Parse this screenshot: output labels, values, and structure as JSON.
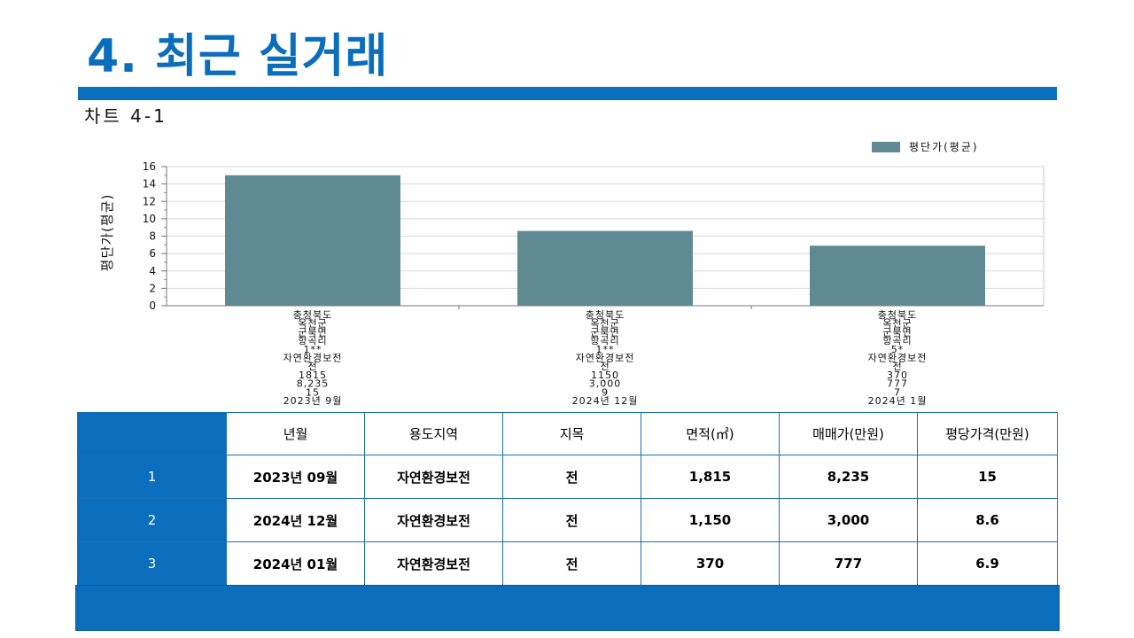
{
  "page": {
    "title": "4. 최근 실거래",
    "chart_label": "차트 4-1"
  },
  "colors": {
    "accent": "#0a6ebd",
    "bar": "#5f8a94"
  },
  "chart_data": {
    "type": "bar",
    "ylabel": "평단가(평균)",
    "ylim": [
      0,
      16
    ],
    "yticks": [
      0,
      2,
      4,
      6,
      8,
      10,
      12,
      14,
      16
    ],
    "legend": "평단가(평균)",
    "legend_position": "top-right",
    "grid": true,
    "categories": [
      [
        "충청북도",
        "옥천군",
        "군북면",
        "항곡리",
        "1**",
        "자연환경보전",
        "전",
        "1815",
        "8,235",
        "15",
        "2023년 9월"
      ],
      [
        "충청북도",
        "옥천군",
        "군북면",
        "항곡리",
        "1**",
        "자연환경보전",
        "전",
        "1150",
        "3,000",
        "9",
        "2024년 12월"
      ],
      [
        "충청북도",
        "옥천군",
        "군북면",
        "항곡리",
        "5*",
        "자연환경보전",
        "전",
        "370",
        "777",
        "7",
        "2024년 1월"
      ]
    ],
    "series": [
      {
        "name": "평단가(평균)",
        "values": [
          15,
          8.6,
          6.9
        ]
      }
    ]
  },
  "table": {
    "headers": [
      "",
      "년월",
      "용도지역",
      "지목",
      "면적(㎡)",
      "매매가(만원)",
      "평당가격(만원)"
    ],
    "rows": [
      [
        "1",
        "2023년 09월",
        "자연환경보전",
        "전",
        "1,815",
        "8,235",
        "15"
      ],
      [
        "2",
        "2024년 12월",
        "자연환경보전",
        "전",
        "1,150",
        "3,000",
        "8.6"
      ],
      [
        "3",
        "2024년 01월",
        "자연환경보전",
        "전",
        "370",
        "777",
        "6.9"
      ]
    ]
  }
}
